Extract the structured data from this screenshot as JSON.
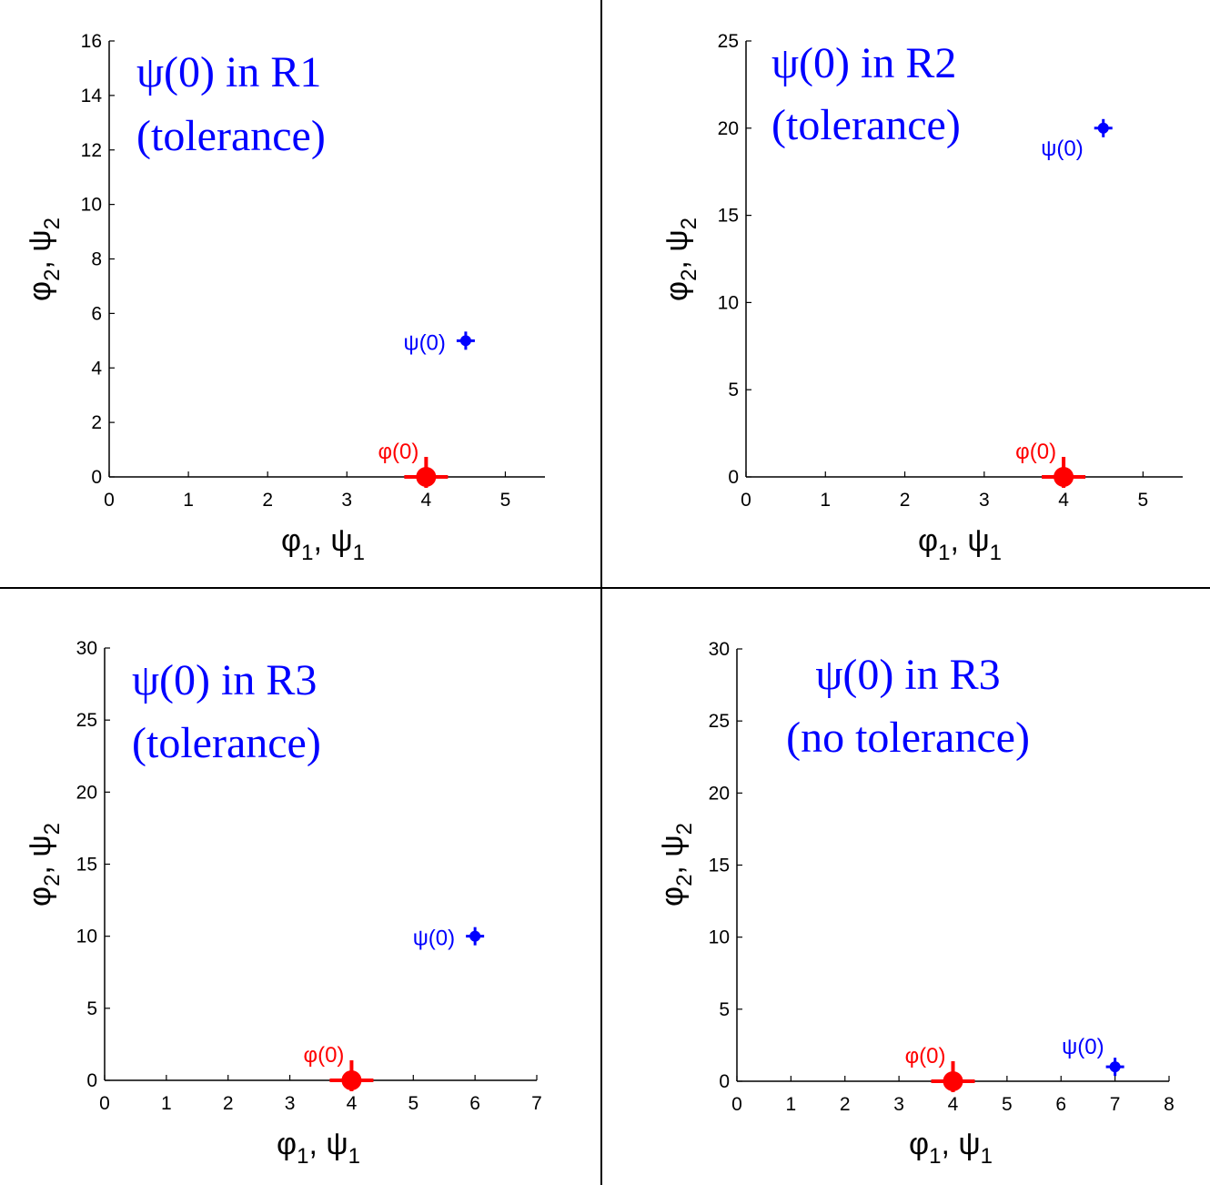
{
  "colors": {
    "psi": "#0000ff",
    "phi": "#ff0000",
    "axis": "#000000",
    "divider": "#000000"
  },
  "chart_data": [
    {
      "type": "scatter",
      "title_line1": "ψ(0) in R1",
      "title_line2": "(tolerance)",
      "xlabel": {
        "sym1": "φ",
        "sub1": "1",
        "sep": ",  ",
        "sym2": "ψ",
        "sub2": "1"
      },
      "ylabel": {
        "sym1": "φ",
        "sub1": "2",
        "sep": ",  ",
        "sym2": "ψ",
        "sub2": "2"
      },
      "xlim": [
        0,
        5.5
      ],
      "ylim": [
        0,
        16
      ],
      "xticks": [
        0,
        1,
        2,
        3,
        4,
        5
      ],
      "yticks": [
        0,
        2,
        4,
        6,
        8,
        10,
        12,
        14,
        16
      ],
      "points": [
        {
          "name": "psi0",
          "label": "ψ(0)",
          "x": 4.5,
          "y": 5,
          "color": "#0000ff",
          "kind": "small"
        },
        {
          "name": "phi0",
          "label": "φ(0)",
          "x": 4,
          "y": 0,
          "color": "#ff0000",
          "kind": "big"
        }
      ]
    },
    {
      "type": "scatter",
      "title_line1": "ψ(0) in R2",
      "title_line2": "(tolerance)",
      "xlabel": {
        "sym1": "φ",
        "sub1": "1",
        "sep": ",  ",
        "sym2": "ψ",
        "sub2": "1"
      },
      "ylabel": {
        "sym1": "φ",
        "sub1": "2",
        "sep": ",  ",
        "sym2": "ψ",
        "sub2": "2"
      },
      "xlim": [
        0,
        5.5
      ],
      "ylim": [
        0,
        25
      ],
      "xticks": [
        0,
        1,
        2,
        3,
        4,
        5
      ],
      "yticks": [
        0,
        5,
        10,
        15,
        20,
        25
      ],
      "points": [
        {
          "name": "psi0",
          "label": "ψ(0)",
          "x": 4.5,
          "y": 20,
          "color": "#0000ff",
          "kind": "small"
        },
        {
          "name": "phi0",
          "label": "φ(0)",
          "x": 4,
          "y": 0,
          "color": "#ff0000",
          "kind": "big"
        }
      ]
    },
    {
      "type": "scatter",
      "title_line1": "ψ(0) in R3",
      "title_line2": "(tolerance)",
      "xlabel": {
        "sym1": "φ",
        "sub1": "1",
        "sep": ",  ",
        "sym2": "ψ",
        "sub2": "1"
      },
      "ylabel": {
        "sym1": "φ",
        "sub1": "2",
        "sep": ",  ",
        "sym2": "ψ",
        "sub2": "2"
      },
      "xlim": [
        0,
        7
      ],
      "ylim": [
        0,
        30
      ],
      "xticks": [
        0,
        1,
        2,
        3,
        4,
        5,
        6,
        7
      ],
      "yticks": [
        0,
        5,
        10,
        15,
        20,
        25,
        30
      ],
      "points": [
        {
          "name": "psi0",
          "label": "ψ(0)",
          "x": 6,
          "y": 10,
          "color": "#0000ff",
          "kind": "small"
        },
        {
          "name": "phi0",
          "label": "φ(0)",
          "x": 4,
          "y": 0,
          "color": "#ff0000",
          "kind": "big"
        }
      ]
    },
    {
      "type": "scatter",
      "title_line1": "ψ(0) in R3",
      "title_line2": "(no tolerance)",
      "xlabel": {
        "sym1": "φ",
        "sub1": "1",
        "sep": ",  ",
        "sym2": "ψ",
        "sub2": "1"
      },
      "ylabel": {
        "sym1": "φ",
        "sub1": "2",
        "sep": ",  ",
        "sym2": "ψ",
        "sub2": "2"
      },
      "xlim": [
        0,
        8
      ],
      "ylim": [
        0,
        30
      ],
      "xticks": [
        0,
        1,
        2,
        3,
        4,
        5,
        6,
        7,
        8
      ],
      "yticks": [
        0,
        5,
        10,
        15,
        20,
        25,
        30
      ],
      "points": [
        {
          "name": "psi0",
          "label": "ψ(0)",
          "x": 7,
          "y": 1,
          "color": "#0000ff",
          "kind": "small"
        },
        {
          "name": "phi0",
          "label": "φ(0)",
          "x": 4,
          "y": 0,
          "color": "#ff0000",
          "kind": "big"
        }
      ]
    }
  ]
}
